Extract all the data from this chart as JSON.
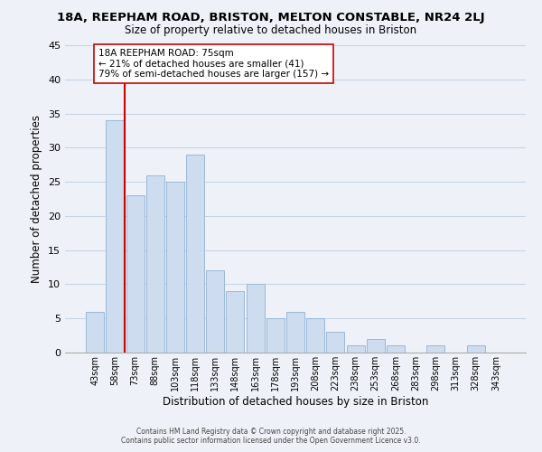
{
  "title": "18A, REEPHAM ROAD, BRISTON, MELTON CONSTABLE, NR24 2LJ",
  "subtitle": "Size of property relative to detached houses in Briston",
  "xlabel": "Distribution of detached houses by size in Briston",
  "ylabel": "Number of detached properties",
  "bar_color": "#cddcee",
  "bar_edge_color": "#9ab8d8",
  "grid_color": "#c8d4e4",
  "background_color": "#eef2f8",
  "bins": [
    "43sqm",
    "58sqm",
    "73sqm",
    "88sqm",
    "103sqm",
    "118sqm",
    "133sqm",
    "148sqm",
    "163sqm",
    "178sqm",
    "193sqm",
    "208sqm",
    "223sqm",
    "238sqm",
    "253sqm",
    "268sqm",
    "283sqm",
    "298sqm",
    "313sqm",
    "328sqm",
    "343sqm"
  ],
  "values": [
    6,
    34,
    23,
    26,
    25,
    29,
    12,
    9,
    10,
    5,
    6,
    5,
    3,
    1,
    2,
    1,
    0,
    1,
    0,
    1,
    0
  ],
  "ylim": [
    0,
    45
  ],
  "yticks": [
    0,
    5,
    10,
    15,
    20,
    25,
    30,
    35,
    40,
    45
  ],
  "vline_color": "#cc0000",
  "annotation_title": "18A REEPHAM ROAD: 75sqm",
  "annotation_line1": "← 21% of detached houses are smaller (41)",
  "annotation_line2": "79% of semi-detached houses are larger (157) →",
  "annotation_box_color": "#ffffff",
  "annotation_box_edge": "#cc0000",
  "footer1": "Contains HM Land Registry data © Crown copyright and database right 2025.",
  "footer2": "Contains public sector information licensed under the Open Government Licence v3.0."
}
